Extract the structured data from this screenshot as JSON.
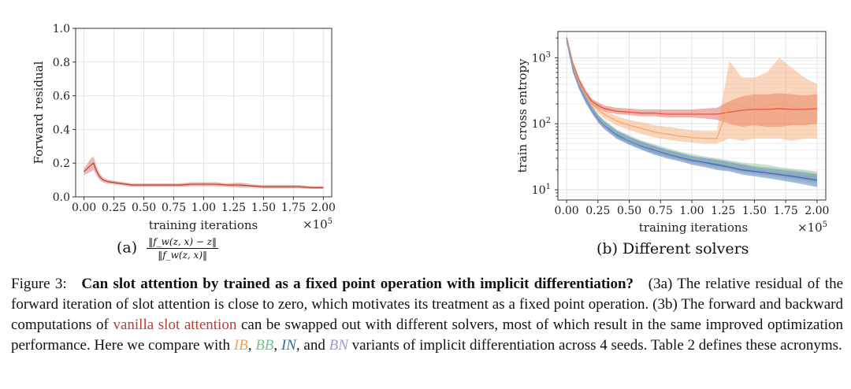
{
  "chart_data": [
    {
      "type": "line",
      "panel": "a",
      "xlabel": "training iterations",
      "ylabel": "Forward residual",
      "xlim": [
        0,
        2.0
      ],
      "ylim": [
        0,
        1.0
      ],
      "x_multiplier": "×10^5",
      "xticks": [
        "0.00",
        "0.25",
        "0.50",
        "0.75",
        "1.00",
        "1.25",
        "1.50",
        "1.75",
        "2.00"
      ],
      "yticks": [
        "0.0",
        "0.2",
        "0.4",
        "0.6",
        "0.8",
        "1.0"
      ],
      "grid": true,
      "series": [
        {
          "color": "#c0392b",
          "x": [
            0.0,
            0.03,
            0.06,
            0.08,
            0.1,
            0.13,
            0.16,
            0.2,
            0.3,
            0.4,
            0.5,
            0.6,
            0.7,
            0.8,
            0.9,
            1.0,
            1.1,
            1.2,
            1.3,
            1.4,
            1.5,
            1.6,
            1.7,
            1.8,
            1.9,
            2.0
          ],
          "y": [
            0.15,
            0.17,
            0.19,
            0.2,
            0.16,
            0.12,
            0.1,
            0.09,
            0.08,
            0.07,
            0.07,
            0.07,
            0.07,
            0.07,
            0.075,
            0.075,
            0.075,
            0.07,
            0.07,
            0.065,
            0.06,
            0.06,
            0.06,
            0.06,
            0.055,
            0.055
          ],
          "band": [
            0.02,
            0.03,
            0.04,
            0.04,
            0.03,
            0.02,
            0.015,
            0.012,
            0.01,
            0.01,
            0.01,
            0.01,
            0.01,
            0.01,
            0.012,
            0.012,
            0.012,
            0.01,
            0.015,
            0.01,
            0.01,
            0.01,
            0.01,
            0.01,
            0.008,
            0.008
          ]
        }
      ]
    },
    {
      "type": "line",
      "panel": "b",
      "xlabel": "training iterations",
      "ylabel": "train cross entropy",
      "xlim": [
        0,
        2.0
      ],
      "ylim": [
        7,
        2500
      ],
      "yscale": "log",
      "x_multiplier": "×10^5",
      "xticks": [
        "0.00",
        "0.25",
        "0.50",
        "0.75",
        "1.00",
        "1.25",
        "1.50",
        "1.75",
        "2.00"
      ],
      "yticks": [
        "10^1",
        "10^2",
        "10^3"
      ],
      "grid": true,
      "series": [
        {
          "color": "#e05040",
          "x": [
            0.0,
            0.05,
            0.1,
            0.15,
            0.2,
            0.25,
            0.3,
            0.4,
            0.5,
            0.6,
            0.7,
            0.8,
            0.9,
            1.0,
            1.1,
            1.2,
            1.3,
            1.4,
            1.5,
            1.6,
            1.7,
            1.8,
            1.9,
            2.0
          ],
          "y": [
            2000,
            800,
            450,
            300,
            220,
            190,
            170,
            155,
            150,
            145,
            145,
            140,
            140,
            140,
            140,
            140,
            150,
            160,
            165,
            165,
            170,
            165,
            165,
            170
          ],
          "lo": [
            1800,
            700,
            400,
            270,
            200,
            170,
            155,
            140,
            135,
            130,
            130,
            125,
            125,
            125,
            120,
            115,
            100,
            90,
            95,
            90,
            90,
            95,
            95,
            100
          ],
          "hi": [
            2200,
            900,
            500,
            330,
            240,
            210,
            190,
            175,
            170,
            165,
            165,
            165,
            165,
            165,
            170,
            175,
            220,
            260,
            280,
            280,
            290,
            280,
            270,
            280
          ]
        },
        {
          "color": "#f4a46a",
          "x": [
            0.0,
            0.05,
            0.1,
            0.15,
            0.2,
            0.25,
            0.3,
            0.4,
            0.5,
            0.6,
            0.7,
            0.8,
            0.9,
            1.0,
            1.1,
            1.2,
            1.3,
            1.4,
            1.5,
            1.6,
            1.7,
            1.8,
            1.9,
            2.0
          ],
          "y": [
            1900,
            750,
            420,
            290,
            200,
            165,
            140,
            110,
            95,
            85,
            75,
            70,
            65,
            62,
            60,
            60,
            200,
            180,
            170,
            190,
            200,
            180,
            170,
            175
          ],
          "lo": [
            1700,
            650,
            380,
            260,
            180,
            145,
            120,
            95,
            80,
            70,
            62,
            58,
            54,
            52,
            50,
            50,
            60,
            55,
            60,
            60,
            60,
            55,
            60,
            60
          ],
          "hi": [
            2100,
            850,
            470,
            320,
            230,
            190,
            165,
            130,
            115,
            105,
            95,
            90,
            85,
            80,
            78,
            78,
            900,
            500,
            500,
            600,
            1000,
            700,
            500,
            400
          ]
        },
        {
          "color": "#7fc88f",
          "x": [
            0.0,
            0.05,
            0.1,
            0.15,
            0.2,
            0.25,
            0.3,
            0.4,
            0.5,
            0.6,
            0.7,
            0.8,
            0.9,
            1.0,
            1.1,
            1.2,
            1.3,
            1.4,
            1.5,
            1.6,
            1.7,
            1.8,
            1.9,
            2.0
          ],
          "y": [
            1900,
            700,
            380,
            250,
            170,
            125,
            100,
            72,
            58,
            48,
            42,
            37,
            33,
            30,
            28,
            26,
            24,
            22,
            21,
            20,
            19,
            18,
            17,
            16
          ],
          "lo": [
            1700,
            600,
            340,
            220,
            150,
            110,
            88,
            62,
            50,
            42,
            36,
            32,
            29,
            26,
            24,
            22,
            21,
            19,
            18,
            17,
            16,
            15,
            14,
            13
          ],
          "hi": [
            2100,
            800,
            420,
            280,
            190,
            140,
            115,
            82,
            67,
            56,
            49,
            43,
            38,
            35,
            32,
            30,
            28,
            26,
            25,
            24,
            22,
            21,
            20,
            19
          ]
        },
        {
          "color": "#2f6fb0",
          "x": [
            0.0,
            0.05,
            0.1,
            0.15,
            0.2,
            0.25,
            0.3,
            0.4,
            0.5,
            0.6,
            0.7,
            0.8,
            0.9,
            1.0,
            1.1,
            1.2,
            1.3,
            1.4,
            1.5,
            1.6,
            1.7,
            1.8,
            1.9,
            2.0
          ],
          "y": [
            1900,
            680,
            370,
            240,
            165,
            120,
            95,
            68,
            55,
            46,
            40,
            35,
            31,
            28,
            26,
            24,
            22,
            20,
            19,
            18,
            17,
            16,
            15,
            14
          ],
          "lo": [
            1700,
            600,
            330,
            210,
            145,
            105,
            83,
            59,
            48,
            40,
            34,
            30,
            27,
            24,
            22,
            20,
            19,
            17,
            16,
            15,
            14,
            13,
            12,
            11
          ],
          "hi": [
            2100,
            770,
            410,
            270,
            185,
            135,
            108,
            78,
            63,
            53,
            46,
            40,
            36,
            32,
            30,
            28,
            26,
            24,
            22,
            21,
            20,
            19,
            18,
            17
          ]
        },
        {
          "color": "#9c9cd0",
          "x": [
            0.0,
            0.05,
            0.1,
            0.15,
            0.2,
            0.25,
            0.3,
            0.4,
            0.5,
            0.6,
            0.7,
            0.8,
            0.9,
            1.0,
            1.1,
            1.2,
            1.3,
            1.4,
            1.5,
            1.6,
            1.7,
            1.8,
            1.9,
            2.0
          ],
          "y": [
            1900,
            690,
            375,
            245,
            168,
            123,
            97,
            70,
            56,
            47,
            41,
            36,
            32,
            29,
            27,
            25,
            23,
            21,
            20,
            19,
            18,
            17,
            16,
            15
          ],
          "lo": [
            1700,
            610,
            335,
            215,
            148,
            108,
            85,
            61,
            49,
            41,
            35,
            31,
            28,
            25,
            23,
            21,
            20,
            18,
            17,
            16,
            15,
            14,
            13,
            12
          ],
          "hi": [
            2100,
            780,
            415,
            275,
            188,
            138,
            110,
            80,
            64,
            54,
            47,
            41,
            37,
            33,
            31,
            29,
            27,
            25,
            23,
            22,
            21,
            20,
            19,
            18
          ]
        }
      ]
    }
  ],
  "panel_a": {
    "caption_label": "(a)",
    "formula_num": "‖f_w(z, x) − z‖",
    "formula_den": "‖f_w(z, x)‖"
  },
  "panel_b": {
    "caption": "(b) Different solvers"
  },
  "figure_caption": {
    "label": "Figure 3:",
    "title": "Can slot attention by trained as a fixed point operation with implicit differentiation?",
    "ref_a_open": "(3a)",
    "text_1": "The relative residual of the forward iteration of slot attention is close to zero, which motivates its treatment as a fixed point operation.",
    "ref_b": "(3b)",
    "text_2": "The forward and backward computations of",
    "red_term": "vanilla slot attention",
    "text_3": "can be swapped out with different solvers, most of which result in the same improved optimization performance. Here we compare with",
    "ib": "IB",
    "comma1": ",",
    "bb": "BB",
    "comma2": ",",
    "in": "IN",
    "and": ", and",
    "bn": "BN",
    "text_4": "variants of implicit differentiation across 4 seeds. Table 2 defines these acronyms."
  }
}
